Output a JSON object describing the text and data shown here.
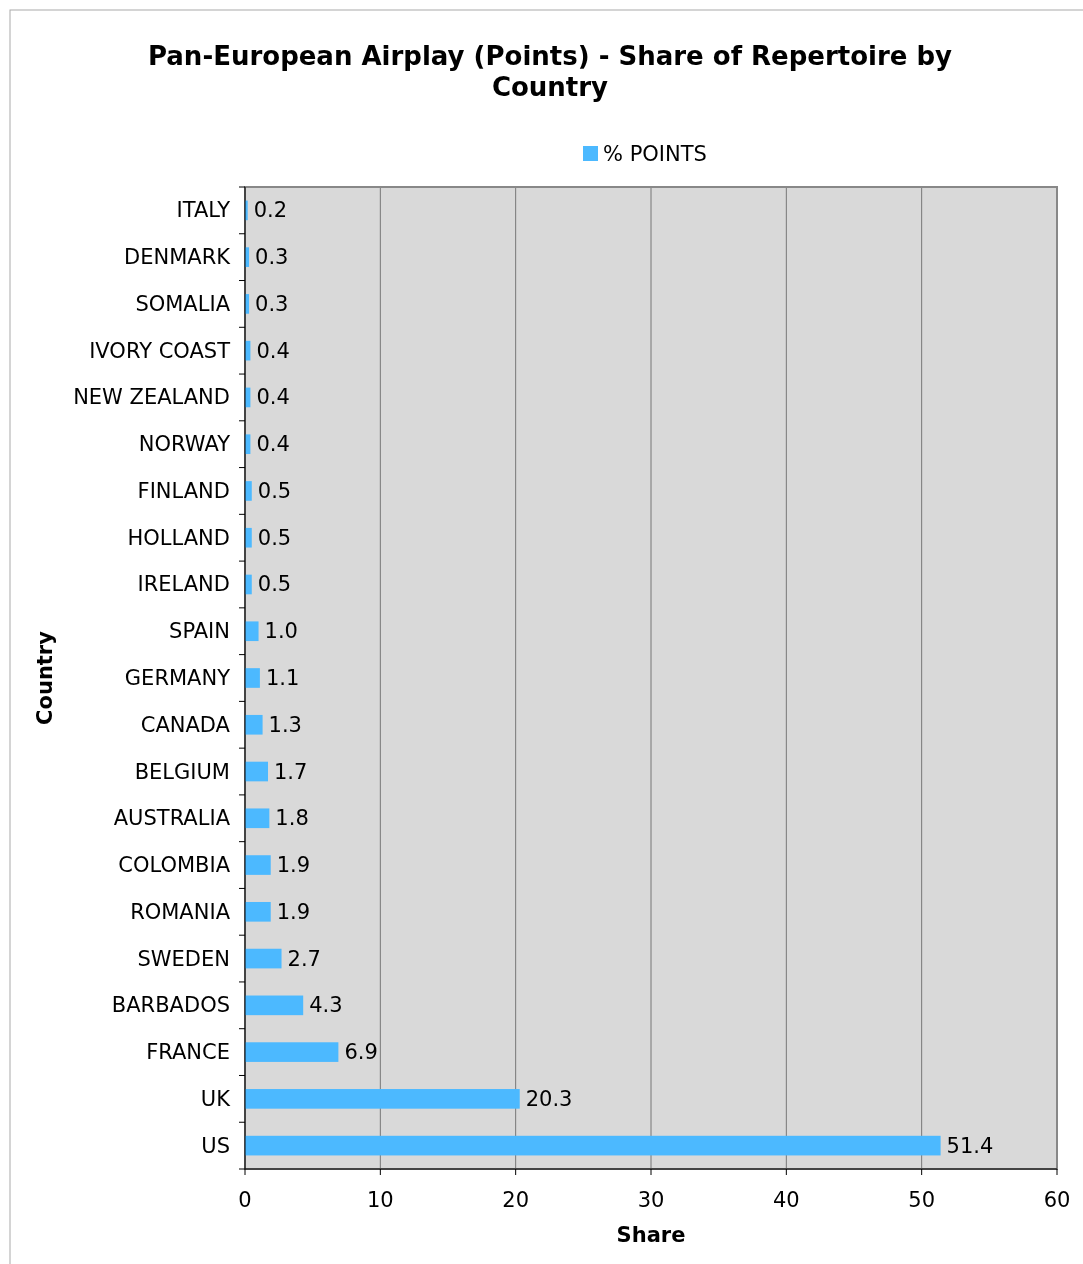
{
  "chart_data": {
    "type": "bar",
    "orientation": "horizontal",
    "title": "Pan-European Airplay (Points) - Share of Repertoire by Country",
    "xlabel": "Share",
    "ylabel": "Country",
    "categories": [
      "ITALY",
      "DENMARK",
      "SOMALIA",
      "IVORY COAST",
      "NEW ZEALAND",
      "NORWAY",
      "FINLAND",
      "HOLLAND",
      "IRELAND",
      "SPAIN",
      "GERMANY",
      "CANADA",
      "BELGIUM",
      "AUSTRALIA",
      "COLOMBIA",
      "ROMANIA",
      "SWEDEN",
      "BARBADOS",
      "FRANCE",
      "UK",
      "US"
    ],
    "series": [
      {
        "name": "% POINTS",
        "color": "#4cb9ff",
        "values": [
          0.2,
          0.3,
          0.3,
          0.4,
          0.4,
          0.4,
          0.5,
          0.5,
          0.5,
          1.0,
          1.1,
          1.3,
          1.7,
          1.8,
          1.9,
          1.9,
          2.7,
          4.3,
          6.9,
          20.3,
          51.4
        ]
      }
    ],
    "value_labels": [
      "0.2",
      "0.3",
      "0.3",
      "0.4",
      "0.4",
      "0.4",
      "0.5",
      "0.5",
      "0.5",
      "1.0",
      "1.1",
      "1.3",
      "1.7",
      "1.8",
      "1.9",
      "1.9",
      "2.7",
      "4.3",
      "6.9",
      "20.3",
      "51.4"
    ],
    "xlim": [
      0,
      60
    ],
    "xticks": [
      0,
      10,
      20,
      30,
      40,
      50,
      60
    ],
    "grid": "x",
    "legend": "top"
  }
}
